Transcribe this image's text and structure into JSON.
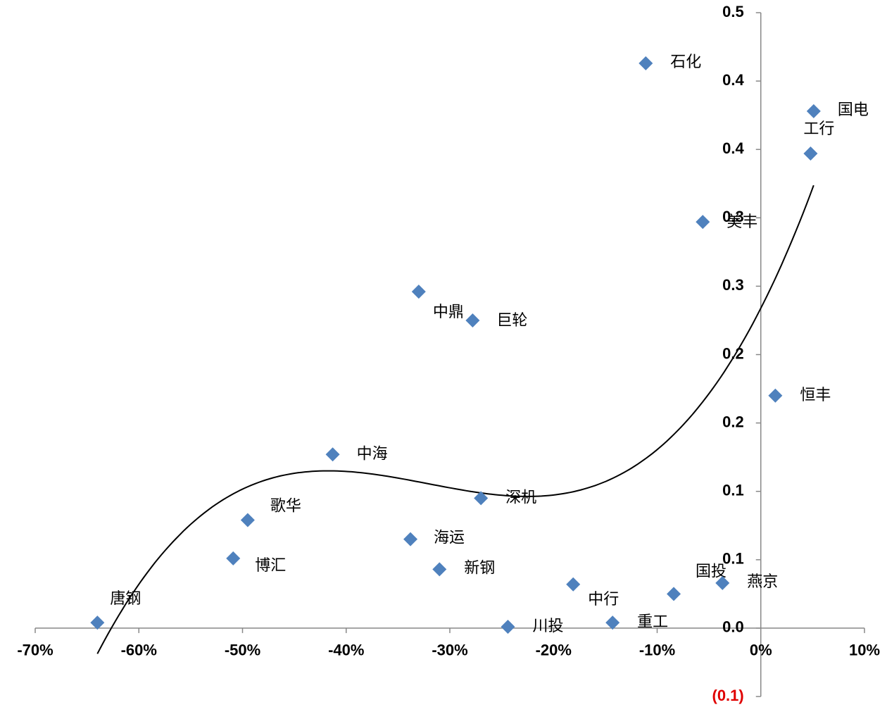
{
  "chart_data": {
    "type": "scatter",
    "color": "#4f81bd",
    "trendline": {
      "type": "polynomial",
      "order": 3,
      "color": "#000000"
    },
    "negative_tick_color": "#e00000",
    "xlim": [
      -70,
      10
    ],
    "xticks": [
      {
        "value": -70,
        "label": "-70%"
      },
      {
        "value": -60,
        "label": "-60%"
      },
      {
        "value": -50,
        "label": "-50%"
      },
      {
        "value": -40,
        "label": "-40%"
      },
      {
        "value": -30,
        "label": "-30%"
      },
      {
        "value": -20,
        "label": "-20%"
      },
      {
        "value": -10,
        "label": "-10%"
      },
      {
        "value": 0,
        "label": "0%"
      },
      {
        "value": 10,
        "label": "10%"
      }
    ],
    "ylim": [
      -0.05,
      0.45
    ],
    "yticks": [
      {
        "value": -0.05,
        "label": "(0.1)"
      },
      {
        "value": 0,
        "label": "0.0"
      },
      {
        "value": 0.05,
        "label": "0.1"
      },
      {
        "value": 0.1,
        "label": "0.1"
      },
      {
        "value": 0.15,
        "label": "0.2"
      },
      {
        "value": 0.2,
        "label": "0.2"
      },
      {
        "value": 0.25,
        "label": "0.3"
      },
      {
        "value": 0.3,
        "label": "0.3"
      },
      {
        "value": 0.35,
        "label": "0.4"
      },
      {
        "value": 0.4,
        "label": "0.4"
      },
      {
        "value": 0.45,
        "label": "0.5"
      }
    ],
    "labels": [
      "唐钢",
      "博汇",
      "歌华",
      "中海",
      "中鼎",
      "巨轮",
      "海运",
      "新钢",
      "深机",
      "川投",
      "中行",
      "重工",
      "石化",
      "国投",
      "燕京",
      "美丰",
      "恒丰",
      "工行",
      "国电"
    ],
    "x": [
      -64.0,
      -50.9,
      -49.5,
      -41.3,
      -33.0,
      -27.8,
      -33.8,
      -31.0,
      -27.0,
      -24.4,
      -18.1,
      -14.3,
      -11.1,
      -8.4,
      -3.7,
      -5.6,
      1.4,
      4.8,
      5.1
    ],
    "values": [
      0.004,
      0.051,
      0.079,
      0.127,
      0.246,
      0.225,
      0.065,
      0.043,
      0.095,
      0.001,
      0.032,
      0.004,
      0.413,
      0.025,
      0.033,
      0.297,
      0.17,
      0.347,
      0.378
    ]
  }
}
